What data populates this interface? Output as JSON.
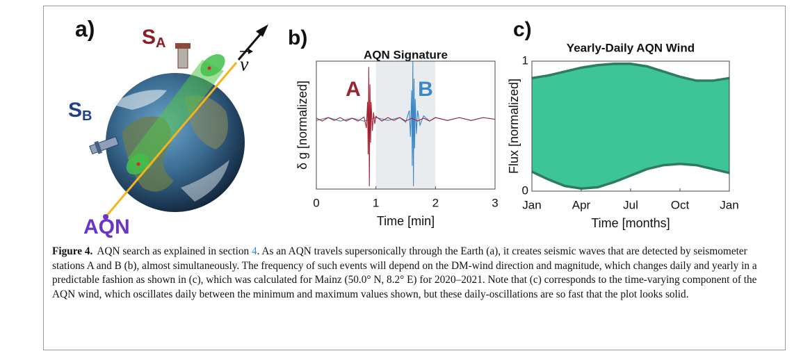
{
  "panel_a": {
    "panel_label": "a)",
    "station_a": {
      "letter": "S",
      "subscript": "A",
      "color": "#8c1d24"
    },
    "station_b": {
      "letter": "S",
      "subscript": "B",
      "color": "#1d3f8f"
    },
    "probe": {
      "text": "AQN",
      "color": "#6a34c9"
    },
    "velocity": "v"
  },
  "chart_data": [
    {
      "type": "line",
      "panel_label": "b)",
      "title": "AQN Signature",
      "x_label": "Time [min]",
      "y_label": "δ g [normalized]",
      "xlim": [
        0,
        3
      ],
      "xticks": [
        0,
        1,
        2,
        3
      ],
      "ylim": [
        -1.2,
        1
      ],
      "shaded_range": [
        1,
        2
      ],
      "shade_color": "#e9ecee",
      "annotations": [
        {
          "text": "A",
          "color": "#9b2230"
        },
        {
          "text": "B",
          "color": "#3c88c6"
        }
      ],
      "series": [
        {
          "color": "#3c88c6",
          "x": [
            0,
            0.2,
            0.4,
            0.6,
            0.8,
            1.0,
            1.2,
            1.4,
            1.5,
            1.56,
            1.58,
            1.6,
            1.61,
            1.62,
            1.63,
            1.64,
            1.65,
            1.66,
            1.68,
            1.7,
            1.74,
            1.8,
            1.9,
            2.0,
            2.2,
            2.4,
            2.6,
            2.8,
            3.0
          ],
          "values": [
            -0.02,
            0.03,
            -0.03,
            0.02,
            -0.03,
            0.03,
            -0.02,
            0.03,
            -0.05,
            0.15,
            -0.3,
            0.5,
            -0.8,
            1.0,
            -1.15,
            0.7,
            -0.5,
            0.35,
            -0.25,
            0.15,
            -0.1,
            0.06,
            -0.03,
            0.03,
            -0.02,
            0.03,
            -0.02,
            0.03,
            0
          ]
        },
        {
          "color": "#a3202e",
          "x": [
            0,
            0.1,
            0.2,
            0.3,
            0.4,
            0.5,
            0.6,
            0.7,
            0.8,
            0.84,
            0.86,
            0.87,
            0.88,
            0.89,
            0.9,
            0.91,
            0.92,
            0.94,
            0.96,
            0.98,
            1.0,
            1.1,
            1.2,
            1.3,
            1.4,
            1.5,
            1.6,
            1.7,
            1.8,
            1.9,
            2.0,
            2.2,
            2.4,
            2.6,
            2.8,
            3.0
          ],
          "values": [
            0.02,
            -0.03,
            0.03,
            -0.02,
            0.03,
            -0.03,
            0.02,
            -0.03,
            0.04,
            -0.15,
            0.3,
            -0.6,
            0.9,
            -1.15,
            0.6,
            -0.4,
            0.3,
            -0.2,
            0.12,
            -0.08,
            0.05,
            -0.03,
            0.03,
            -0.02,
            0.03,
            -0.03,
            0.02,
            -0.03,
            0.02,
            -0.03,
            0.03,
            -0.02,
            0.03,
            -0.02,
            0.03,
            0
          ]
        }
      ]
    },
    {
      "type": "area",
      "panel_label": "c)",
      "title": "Yearly-Daily AQN Wind",
      "x_label": "Time [months]",
      "y_label": "Flux [normalized]",
      "xlim": [
        0,
        12
      ],
      "xticks": [
        {
          "value": 0,
          "label": "Jan"
        },
        {
          "value": 3,
          "label": "Apr"
        },
        {
          "value": 6,
          "label": "Jul"
        },
        {
          "value": 9,
          "label": "Oct"
        },
        {
          "value": 12,
          "label": "Jan"
        }
      ],
      "ylim": [
        0,
        1
      ],
      "yticks": [
        0,
        1
      ],
      "fill": "#3dc497",
      "x": [
        0,
        1,
        2,
        3,
        4,
        5,
        6,
        7,
        8,
        9,
        10,
        11,
        12
      ],
      "series": [
        {
          "color": "#2e7c5c",
          "values": [
            0.87,
            0.89,
            0.92,
            0.95,
            0.97,
            0.98,
            0.98,
            0.96,
            0.92,
            0.88,
            0.85,
            0.85,
            0.87
          ]
        },
        {
          "color": "#2e7c5c",
          "values": [
            0.15,
            0.09,
            0.04,
            0.02,
            0.03,
            0.07,
            0.12,
            0.17,
            0.2,
            0.21,
            0.2,
            0.17,
            0.14
          ]
        }
      ]
    }
  ],
  "caption": {
    "label": "Figure 4.",
    "text_before": "AQN search as explained in section ",
    "link": "4",
    "text_after": ". As an AQN travels supersonically through the Earth (a), it creates seismic waves that are detected by seismometer stations A and B (b), almost simultaneously. The frequency of such events will depend on the DM-wind direction and magnitude, which changes daily and yearly in a predictable fashion as shown in (c), which was calculated for Mainz (50.0° N, 8.2° E) for 2020–2021. Note that (c) corresponds to the time-varying component of the AQN wind, which oscillates daily between the minimum and maximum values shown, but these daily-oscillations are so fast that the plot looks solid."
  }
}
